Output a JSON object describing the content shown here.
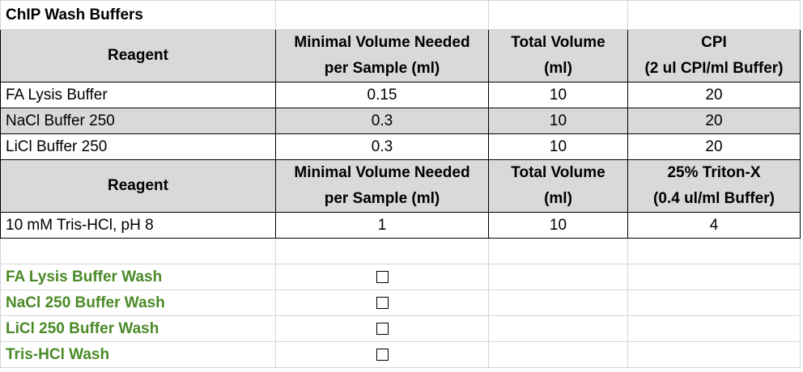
{
  "title": "ChIP Wash Buffers",
  "table1": {
    "headers": {
      "reagent": "Reagent",
      "min_line1": "Minimal Volume Needed",
      "min_line2": "per Sample (ml)",
      "total_line1": "Total Volume",
      "total_line2": "(ml)",
      "extra_line1": "CPI",
      "extra_line2": "(2 ul CPI/ml Buffer)"
    },
    "rows": [
      {
        "reagent": "FA Lysis Buffer",
        "min": "0.15",
        "total": "10",
        "extra": "20"
      },
      {
        "reagent": "NaCl Buffer 250",
        "min": "0.3",
        "total": "10",
        "extra": "20"
      },
      {
        "reagent": "LiCl Buffer 250",
        "min": "0.3",
        "total": "10",
        "extra": "20"
      }
    ]
  },
  "table2": {
    "headers": {
      "reagent": "Reagent",
      "min_line1": "Minimal Volume Needed",
      "min_line2": "per Sample (ml)",
      "total_line1": "Total Volume",
      "total_line2": "(ml)",
      "extra_line1": "25% Triton-X",
      "extra_line2": "(0.4 ul/ml Buffer)"
    },
    "rows": [
      {
        "reagent": "10 mM Tris-HCl, pH 8",
        "min": "1",
        "total": "10",
        "extra": "4"
      }
    ]
  },
  "checklist": [
    {
      "label": "FA Lysis Buffer Wash",
      "checked": false
    },
    {
      "label": "NaCl 250 Buffer Wash",
      "checked": false
    },
    {
      "label": "LiCl 250 Buffer Wash",
      "checked": false
    },
    {
      "label": "Tris-HCl Wash",
      "checked": false
    }
  ],
  "colors": {
    "header_fill": "#d9d9d9",
    "checklist_text": "#4a8a27"
  }
}
